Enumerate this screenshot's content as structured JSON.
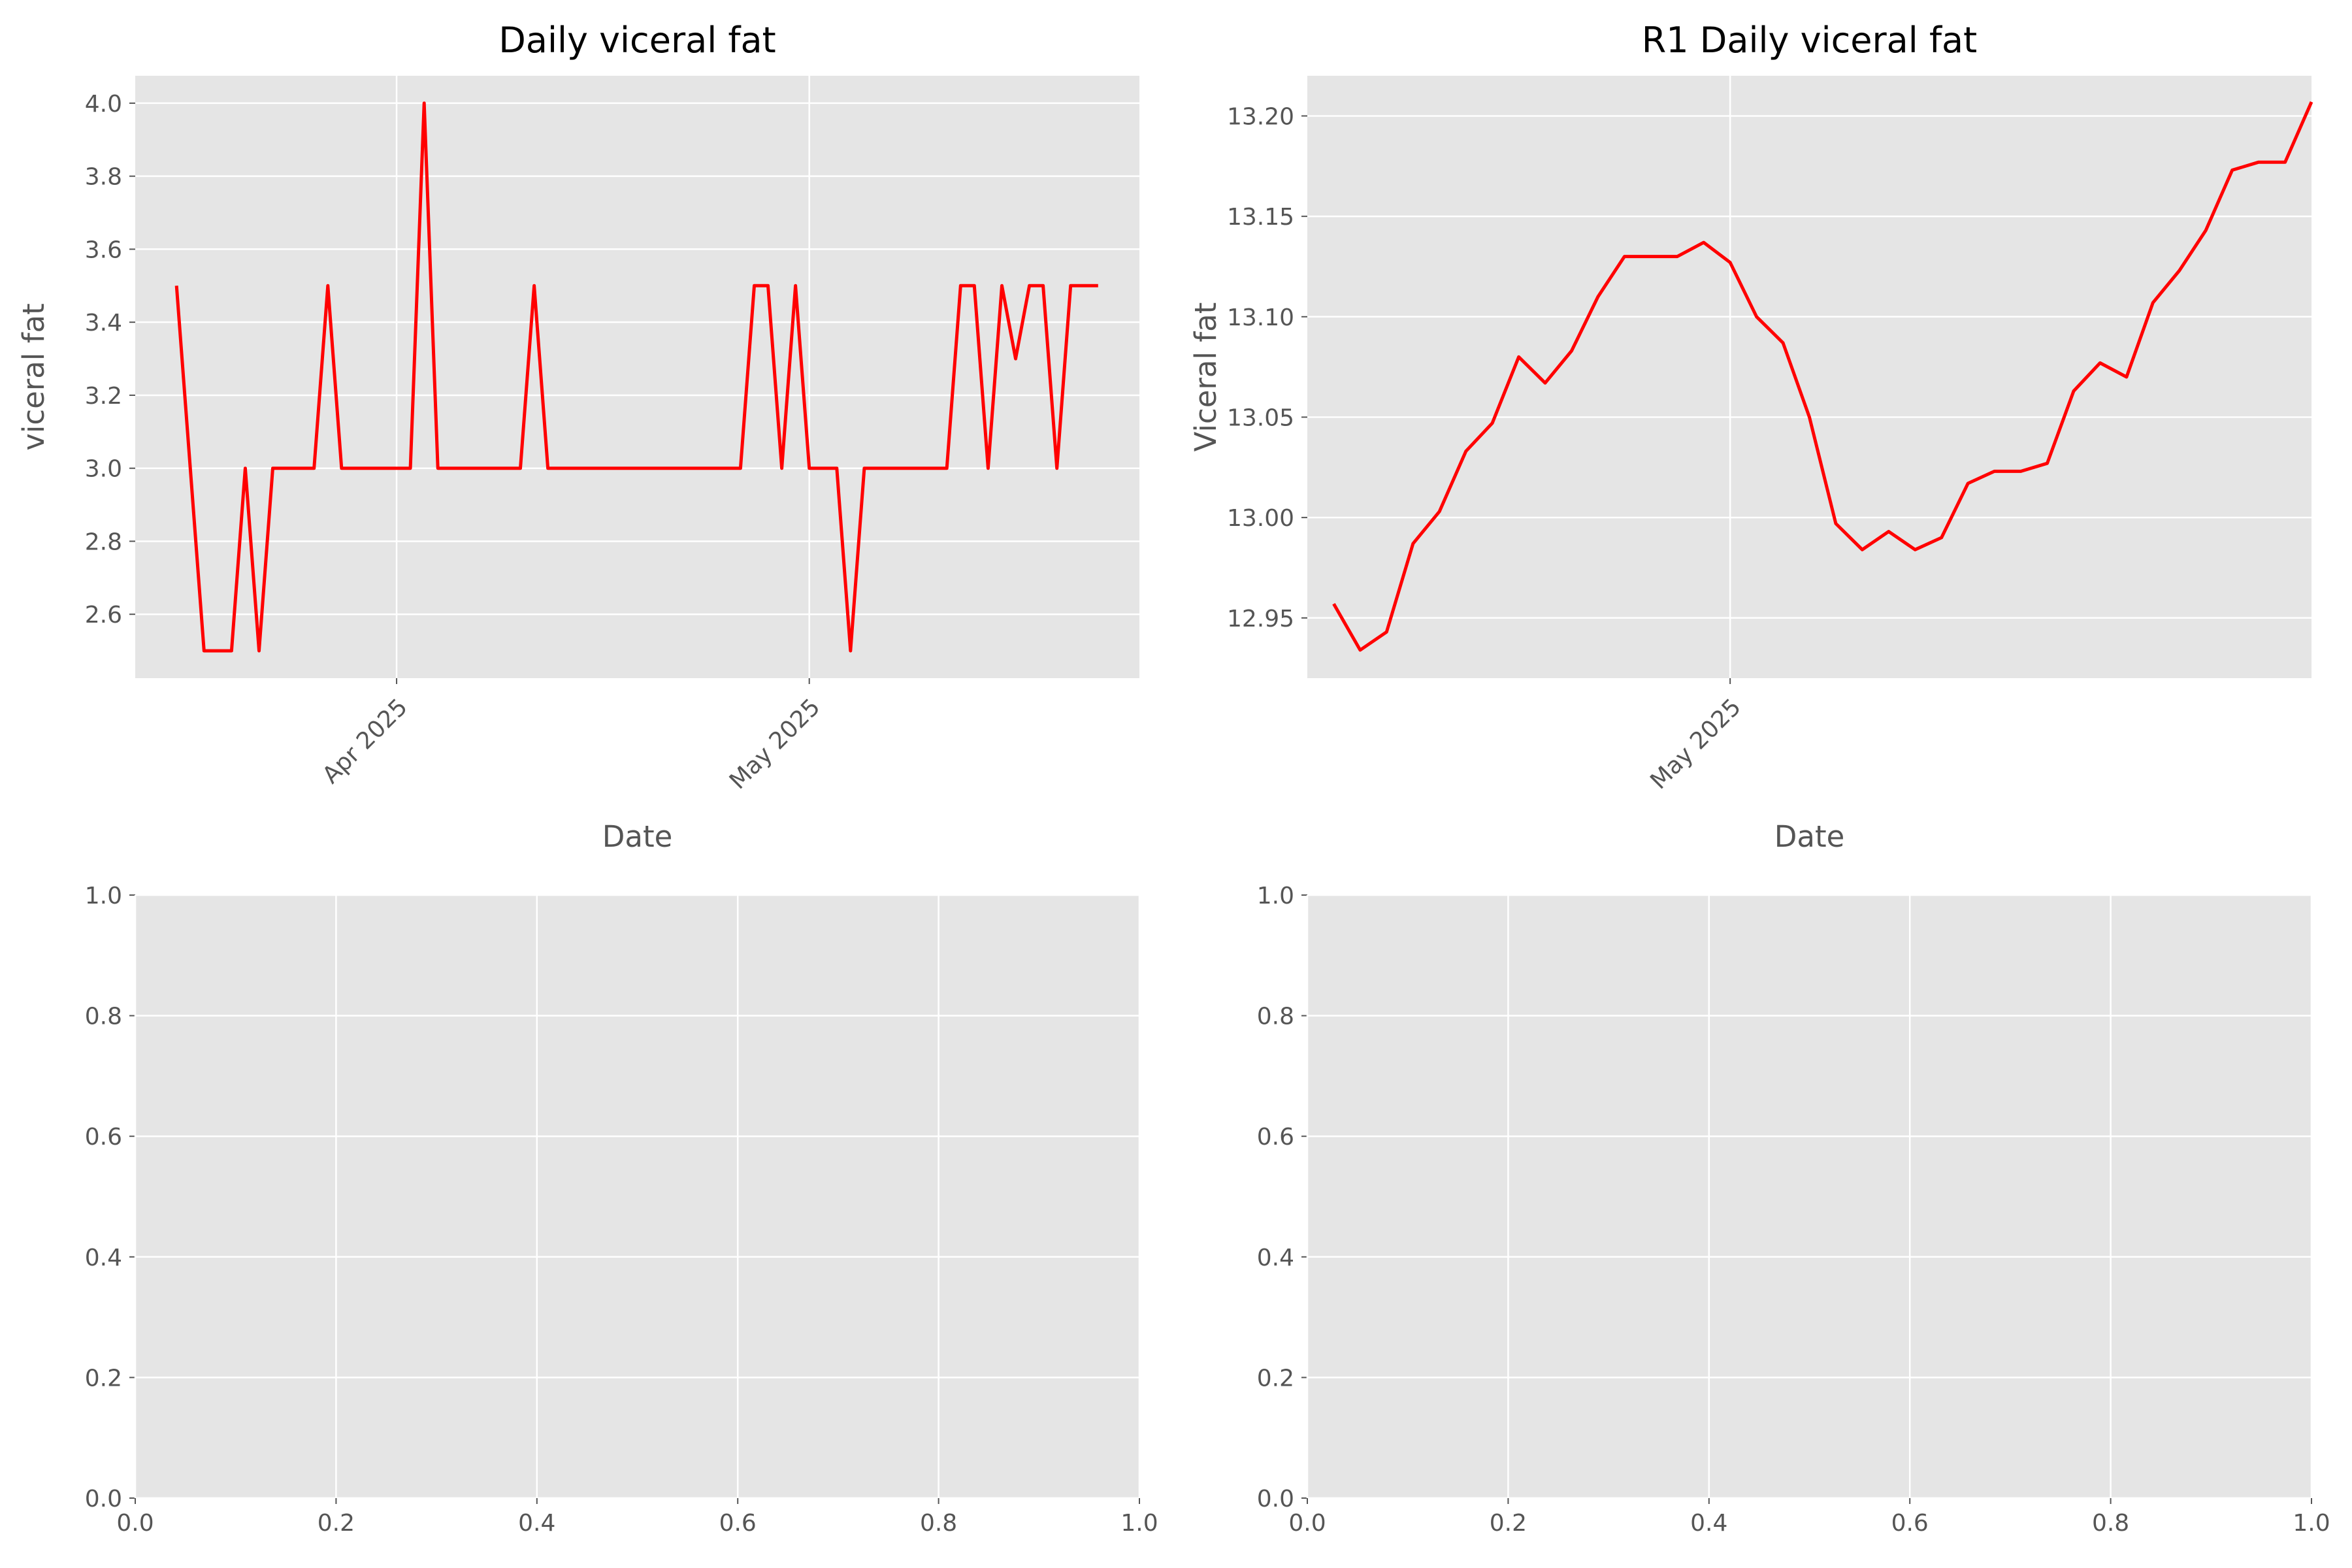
{
  "chart_data": [
    {
      "type": "line",
      "title": "Daily viceral fat",
      "xlabel": "Date",
      "ylabel": "viceral fat",
      "xlim": [
        "2025-03-13",
        "2025-05-25"
      ],
      "ylim": [
        2.425,
        4.075
      ],
      "yticks": [
        2.6,
        2.8,
        3.0,
        3.2,
        3.4,
        3.6,
        3.8,
        4.0
      ],
      "xticks": [
        {
          "x": "2025-04-01",
          "label": "Apr 2025"
        },
        {
          "x": "2025-05-01",
          "label": "May 2025"
        }
      ],
      "grid": true,
      "series": [
        {
          "color": "#ff0000",
          "x": [
            "2025-03-16",
            "2025-03-18",
            "2025-03-19",
            "2025-03-20",
            "2025-03-21",
            "2025-03-22",
            "2025-03-23",
            "2025-03-24",
            "2025-03-25",
            "2025-03-26",
            "2025-03-27",
            "2025-03-28",
            "2025-03-29",
            "2025-03-30",
            "2025-03-31",
            "2025-04-01",
            "2025-04-02",
            "2025-04-03",
            "2025-04-04",
            "2025-04-05",
            "2025-04-06",
            "2025-04-07",
            "2025-04-08",
            "2025-04-09",
            "2025-04-10",
            "2025-04-11",
            "2025-04-12",
            "2025-04-13",
            "2025-04-14",
            "2025-04-15",
            "2025-04-16",
            "2025-04-17",
            "2025-04-18",
            "2025-04-19",
            "2025-04-20",
            "2025-04-21",
            "2025-04-22",
            "2025-04-23",
            "2025-04-24",
            "2025-04-25",
            "2025-04-26",
            "2025-04-27",
            "2025-04-28",
            "2025-04-29",
            "2025-04-30",
            "2025-05-01",
            "2025-05-02",
            "2025-05-03",
            "2025-05-04",
            "2025-05-05",
            "2025-05-06",
            "2025-05-07",
            "2025-05-08",
            "2025-05-09",
            "2025-05-10",
            "2025-05-11",
            "2025-05-12",
            "2025-05-13",
            "2025-05-14",
            "2025-05-15",
            "2025-05-16",
            "2025-05-17",
            "2025-05-18",
            "2025-05-19",
            "2025-05-20",
            "2025-05-21",
            "2025-05-22"
          ],
          "y": [
            3.5,
            2.5,
            2.5,
            2.5,
            3.0,
            2.5,
            3.0,
            3.0,
            3.0,
            3.0,
            3.5,
            3.0,
            3.0,
            3.0,
            3.0,
            3.0,
            3.0,
            4.0,
            3.0,
            3.0,
            3.0,
            3.0,
            3.0,
            3.0,
            3.0,
            3.5,
            3.0,
            3.0,
            3.0,
            3.0,
            3.0,
            3.0,
            3.0,
            3.0,
            3.0,
            3.0,
            3.0,
            3.0,
            3.0,
            3.0,
            3.0,
            3.5,
            3.5,
            3.0,
            3.5,
            3.0,
            3.0,
            3.0,
            2.5,
            3.0,
            3.0,
            3.0,
            3.0,
            3.0,
            3.0,
            3.0,
            3.5,
            3.5,
            3.0,
            3.5,
            3.3,
            3.5,
            3.5,
            3.0,
            3.5,
            3.5,
            3.5
          ]
        }
      ]
    },
    {
      "type": "line",
      "title": "R1 Daily viceral fat",
      "xlabel": "Date",
      "ylabel": "Viceral fat",
      "xlim": [
        "2025-04-15",
        "2025-05-23"
      ],
      "ylim": [
        12.92,
        13.22
      ],
      "yticks": [
        12.95,
        13.0,
        13.05,
        13.1,
        13.15,
        13.2
      ],
      "xticks": [
        {
          "x": "2025-05-01",
          "label": "May 2025"
        }
      ],
      "grid": true,
      "series": [
        {
          "color": "#ff0000",
          "x": [
            "2025-04-16",
            "2025-04-17",
            "2025-04-18",
            "2025-04-19",
            "2025-04-20",
            "2025-04-21",
            "2025-04-22",
            "2025-04-23",
            "2025-04-24",
            "2025-04-25",
            "2025-04-26",
            "2025-04-27",
            "2025-04-28",
            "2025-04-29",
            "2025-04-30",
            "2025-05-01",
            "2025-05-02",
            "2025-05-03",
            "2025-05-04",
            "2025-05-05",
            "2025-05-06",
            "2025-05-07",
            "2025-05-08",
            "2025-05-09",
            "2025-05-10",
            "2025-05-11",
            "2025-05-12",
            "2025-05-13",
            "2025-05-14",
            "2025-05-15",
            "2025-05-16",
            "2025-05-17",
            "2025-05-18",
            "2025-05-19",
            "2025-05-20",
            "2025-05-21",
            "2025-05-22"
          ],
          "y": [
            12.957,
            12.934,
            12.943,
            12.987,
            13.003,
            13.033,
            13.047,
            13.08,
            13.067,
            13.083,
            13.11,
            13.13,
            13.13,
            13.13,
            13.137,
            13.127,
            13.1,
            13.087,
            13.05,
            12.997,
            12.984,
            12.993,
            12.984,
            12.99,
            13.017,
            13.023,
            13.023,
            13.027,
            13.063,
            13.077,
            13.07,
            13.107,
            13.123,
            13.143,
            13.173,
            13.177,
            13.177
          ]
        }
      ],
      "series_extra_last": {
        "x": "2025-05-23",
        "y": 13.207
      }
    },
    {
      "type": "line",
      "title": "",
      "xlim": [
        0.0,
        1.0
      ],
      "ylim": [
        0.0,
        1.0
      ],
      "xticks": [
        0.0,
        0.2,
        0.4,
        0.6,
        0.8,
        1.0
      ],
      "yticks": [
        0.0,
        0.2,
        0.4,
        0.6,
        0.8,
        1.0
      ],
      "grid": true,
      "series": []
    },
    {
      "type": "line",
      "title": "",
      "xlim": [
        0.0,
        1.0
      ],
      "ylim": [
        0.0,
        1.0
      ],
      "xticks": [
        0.0,
        0.2,
        0.4,
        0.6,
        0.8,
        1.0
      ],
      "yticks": [
        0.0,
        0.2,
        0.4,
        0.6,
        0.8,
        1.0
      ],
      "grid": true,
      "series": []
    }
  ],
  "colors": {
    "axes_bg": "#e5e5e5",
    "grid": "#ffffff",
    "line": "#ff0000",
    "text": "#555555",
    "title": "#000000"
  }
}
